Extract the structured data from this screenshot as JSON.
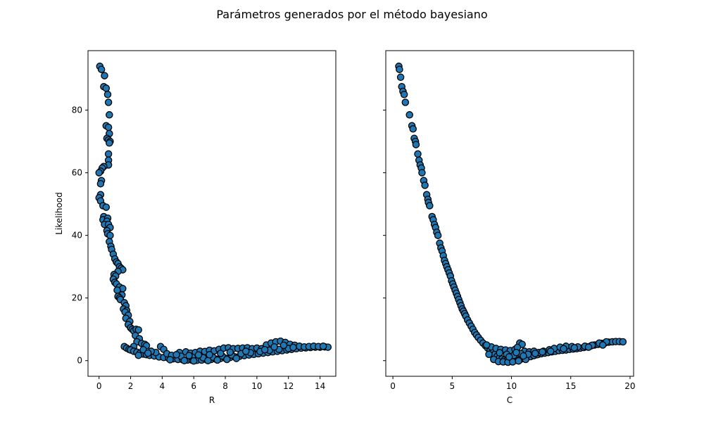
{
  "figure": {
    "title": "Parámetros generados por el método bayesiano"
  },
  "chart_data": [
    {
      "type": "scatter",
      "xlabel": "R",
      "ylabel": "Likelihood",
      "xlim": [
        -0.7,
        15.0
      ],
      "ylim": [
        -5,
        99
      ],
      "xticks": [
        0,
        2,
        4,
        6,
        8,
        10,
        12,
        14
      ],
      "yticks": [
        0,
        20,
        40,
        60,
        80
      ],
      "grid": false,
      "marker_color": "#1f77b4",
      "edge_color": "#000000",
      "points": [
        [
          0.05,
          94.0
        ],
        [
          0.15,
          93.0
        ],
        [
          0.35,
          91.0
        ],
        [
          0.3,
          87.5
        ],
        [
          0.45,
          87.0
        ],
        [
          0.55,
          85.0
        ],
        [
          0.6,
          82.5
        ],
        [
          0.65,
          78.5
        ],
        [
          0.45,
          75.0
        ],
        [
          0.6,
          74.5
        ],
        [
          0.65,
          72.5
        ],
        [
          0.5,
          71.0
        ],
        [
          0.6,
          70.5
        ],
        [
          0.7,
          70.0
        ],
        [
          0.65,
          69.5
        ],
        [
          0.6,
          66.0
        ],
        [
          0.6,
          64.0
        ],
        [
          0.6,
          62.5
        ],
        [
          0.3,
          62.0
        ],
        [
          0.2,
          61.5
        ],
        [
          0.1,
          60.5
        ],
        [
          0.0,
          60.0
        ],
        [
          0.15,
          57.5
        ],
        [
          0.1,
          56.5
        ],
        [
          0.1,
          53.0
        ],
        [
          0.0,
          52.0
        ],
        [
          0.1,
          51.0
        ],
        [
          0.25,
          49.5
        ],
        [
          0.45,
          49.0
        ],
        [
          0.3,
          46.0
        ],
        [
          0.25,
          45.0
        ],
        [
          0.55,
          45.5
        ],
        [
          0.5,
          44.5
        ],
        [
          0.35,
          43.5
        ],
        [
          0.6,
          43.5
        ],
        [
          0.7,
          42.5
        ],
        [
          0.5,
          41.5
        ],
        [
          0.55,
          40.5
        ],
        [
          0.7,
          40.0
        ],
        [
          0.65,
          38.0
        ],
        [
          0.75,
          36.5
        ],
        [
          0.8,
          35.5
        ],
        [
          0.9,
          34.0
        ],
        [
          1.0,
          32.5
        ],
        [
          1.1,
          31.5
        ],
        [
          1.2,
          31.0
        ],
        [
          1.3,
          30.0
        ],
        [
          1.4,
          29.5
        ],
        [
          1.5,
          29.0
        ],
        [
          1.2,
          28.5
        ],
        [
          0.95,
          27.5
        ],
        [
          1.05,
          27.0
        ],
        [
          0.9,
          26.0
        ],
        [
          1.0,
          25.0
        ],
        [
          1.1,
          24.5
        ],
        [
          1.3,
          23.5
        ],
        [
          1.5,
          23.0
        ],
        [
          1.15,
          22.5
        ],
        [
          1.45,
          21.0
        ],
        [
          1.2,
          20.5
        ],
        [
          1.3,
          20.0
        ],
        [
          1.35,
          19.5
        ],
        [
          1.6,
          18.5
        ],
        [
          1.7,
          17.5
        ],
        [
          1.55,
          16.5
        ],
        [
          1.75,
          16.0
        ],
        [
          1.65,
          15.5
        ],
        [
          1.85,
          14.5
        ],
        [
          1.7,
          13.5
        ],
        [
          1.95,
          12.5
        ],
        [
          1.85,
          11.5
        ],
        [
          2.0,
          10.5
        ],
        [
          2.1,
          10.0
        ],
        [
          2.2,
          9.5
        ],
        [
          2.35,
          10.0
        ],
        [
          2.5,
          9.8
        ],
        [
          2.3,
          8.0
        ],
        [
          2.55,
          7.0
        ],
        [
          2.4,
          6.0
        ],
        [
          2.7,
          5.5
        ],
        [
          2.9,
          5.2
        ],
        [
          3.0,
          4.8
        ],
        [
          2.2,
          4.5
        ],
        [
          1.6,
          4.5
        ],
        [
          1.75,
          4.0
        ],
        [
          1.9,
          3.6
        ],
        [
          2.0,
          3.4
        ],
        [
          2.2,
          3.0
        ],
        [
          2.4,
          2.7
        ],
        [
          2.6,
          2.4
        ],
        [
          2.8,
          2.1
        ],
        [
          3.0,
          1.9
        ],
        [
          3.2,
          1.7
        ],
        [
          3.5,
          1.5
        ],
        [
          3.8,
          1.2
        ],
        [
          4.1,
          1.0
        ],
        [
          4.4,
          0.8
        ],
        [
          4.7,
          0.6
        ],
        [
          5.0,
          0.4
        ],
        [
          5.3,
          0.3
        ],
        [
          5.6,
          0.2
        ],
        [
          5.9,
          0.1
        ],
        [
          6.2,
          0.1
        ],
        [
          6.5,
          0.2
        ],
        [
          6.8,
          0.3
        ],
        [
          7.1,
          0.4
        ],
        [
          7.4,
          0.5
        ],
        [
          7.7,
          0.7
        ],
        [
          8.0,
          0.8
        ],
        [
          8.3,
          1.0
        ],
        [
          8.6,
          1.2
        ],
        [
          8.9,
          1.4
        ],
        [
          9.2,
          1.6
        ],
        [
          9.5,
          1.8
        ],
        [
          9.8,
          2.0
        ],
        [
          10.1,
          2.2
        ],
        [
          10.4,
          2.4
        ],
        [
          10.7,
          2.6
        ],
        [
          11.0,
          2.8
        ],
        [
          11.3,
          3.0
        ],
        [
          11.6,
          3.2
        ],
        [
          11.9,
          3.4
        ],
        [
          12.2,
          3.6
        ],
        [
          12.5,
          3.8
        ],
        [
          12.8,
          4.0
        ],
        [
          13.1,
          4.1
        ],
        [
          13.4,
          4.2
        ],
        [
          13.7,
          4.3
        ],
        [
          14.0,
          4.3
        ],
        [
          14.3,
          4.4
        ],
        [
          14.5,
          4.3
        ],
        [
          3.9,
          4.5
        ],
        [
          4.1,
          3.6
        ],
        [
          4.3,
          2.2
        ],
        [
          3.6,
          2.6
        ],
        [
          5.1,
          2.6
        ],
        [
          5.5,
          2.8
        ],
        [
          5.8,
          2.4
        ],
        [
          6.1,
          2.6
        ],
        [
          6.4,
          3.0
        ],
        [
          6.7,
          2.9
        ],
        [
          7.0,
          3.3
        ],
        [
          7.3,
          3.1
        ],
        [
          7.6,
          3.6
        ],
        [
          7.9,
          4.0
        ],
        [
          8.2,
          4.1
        ],
        [
          8.5,
          3.8
        ],
        [
          8.8,
          3.9
        ],
        [
          9.1,
          4.0
        ],
        [
          9.4,
          4.1
        ],
        [
          9.7,
          3.8
        ],
        [
          10.0,
          4.0
        ],
        [
          10.3,
          3.8
        ],
        [
          10.6,
          5.0
        ],
        [
          10.9,
          5.6
        ],
        [
          11.2,
          6.0
        ],
        [
          11.5,
          6.2
        ],
        [
          11.8,
          5.8
        ],
        [
          12.1,
          5.2
        ],
        [
          12.4,
          4.9
        ],
        [
          12.7,
          4.6
        ],
        [
          13.0,
          4.4
        ],
        [
          13.3,
          4.5
        ],
        [
          13.6,
          4.6
        ],
        [
          13.9,
          4.5
        ],
        [
          14.2,
          4.6
        ],
        [
          4.6,
          1.7
        ],
        [
          5.2,
          1.4
        ],
        [
          5.9,
          1.1
        ],
        [
          6.6,
          0.9
        ],
        [
          7.2,
          1.1
        ],
        [
          7.8,
          1.5
        ],
        [
          8.4,
          1.8
        ],
        [
          9.0,
          2.2
        ],
        [
          9.6,
          2.5
        ],
        [
          10.2,
          2.9
        ],
        [
          10.8,
          3.3
        ],
        [
          11.4,
          3.6
        ],
        [
          12.0,
          3.9
        ],
        [
          4.5,
          0.3
        ],
        [
          5.4,
          0.0
        ],
        [
          6.0,
          -0.1
        ],
        [
          6.9,
          0.0
        ],
        [
          7.5,
          0.2
        ],
        [
          8.1,
          0.4
        ],
        [
          8.7,
          0.7
        ],
        [
          2.8,
          3.5
        ],
        [
          3.3,
          3.0
        ],
        [
          2.5,
          1.7
        ],
        [
          3.1,
          2.4
        ],
        [
          4.9,
          1.9
        ],
        [
          5.7,
          1.6
        ],
        [
          6.3,
          1.8
        ],
        [
          7.0,
          1.9
        ],
        [
          7.7,
          2.3
        ],
        [
          8.3,
          2.7
        ],
        [
          9.3,
          3.0
        ],
        [
          10.5,
          3.5
        ],
        [
          11.1,
          4.4
        ],
        [
          11.7,
          4.9
        ],
        [
          12.3,
          4.2
        ]
      ]
    },
    {
      "type": "scatter",
      "xlabel": "C",
      "ylabel": "",
      "xlim": [
        -0.6,
        20.3
      ],
      "ylim": [
        -5,
        99
      ],
      "xticks": [
        0,
        5,
        10,
        15,
        20
      ],
      "yticks": [
        0,
        20,
        40,
        60,
        80
      ],
      "grid": false,
      "marker_color": "#1f77b4",
      "edge_color": "#000000",
      "points": [
        [
          0.5,
          94.0
        ],
        [
          0.55,
          93.0
        ],
        [
          0.65,
          90.5
        ],
        [
          0.75,
          87.5
        ],
        [
          0.85,
          86.0
        ],
        [
          0.95,
          85.0
        ],
        [
          1.05,
          82.5
        ],
        [
          1.4,
          78.5
        ],
        [
          1.6,
          75.0
        ],
        [
          1.7,
          74.0
        ],
        [
          1.8,
          71.0
        ],
        [
          1.9,
          70.0
        ],
        [
          1.95,
          69.0
        ],
        [
          2.1,
          66.0
        ],
        [
          2.2,
          64.0
        ],
        [
          2.3,
          62.5
        ],
        [
          2.4,
          61.5
        ],
        [
          2.45,
          60.0
        ],
        [
          2.6,
          57.5
        ],
        [
          2.7,
          56.0
        ],
        [
          2.85,
          53.0
        ],
        [
          2.95,
          51.5
        ],
        [
          3.0,
          50.5
        ],
        [
          3.1,
          49.5
        ],
        [
          3.3,
          46.0
        ],
        [
          3.4,
          45.0
        ],
        [
          3.5,
          43.5
        ],
        [
          3.6,
          42.5
        ],
        [
          3.7,
          41.0
        ],
        [
          3.8,
          40.0
        ],
        [
          3.95,
          37.5
        ],
        [
          4.05,
          36.0
        ],
        [
          4.15,
          35.0
        ],
        [
          4.25,
          33.5
        ],
        [
          4.35,
          32.0
        ],
        [
          4.45,
          31.0
        ],
        [
          4.55,
          30.0
        ],
        [
          4.65,
          29.0
        ],
        [
          4.75,
          28.0
        ],
        [
          4.85,
          27.0
        ],
        [
          4.95,
          25.5
        ],
        [
          5.05,
          24.5
        ],
        [
          5.15,
          23.5
        ],
        [
          5.25,
          22.5
        ],
        [
          5.35,
          21.5
        ],
        [
          5.45,
          20.5
        ],
        [
          5.55,
          19.5
        ],
        [
          5.65,
          18.5
        ],
        [
          5.75,
          17.5
        ],
        [
          5.85,
          16.5
        ],
        [
          5.95,
          15.8
        ],
        [
          6.05,
          15.0
        ],
        [
          6.15,
          14.2
        ],
        [
          6.3,
          13.0
        ],
        [
          6.45,
          12.0
        ],
        [
          6.6,
          11.0
        ],
        [
          6.75,
          10.0
        ],
        [
          6.9,
          9.0
        ],
        [
          7.05,
          8.2
        ],
        [
          7.2,
          7.4
        ],
        [
          7.4,
          6.5
        ],
        [
          7.6,
          5.6
        ],
        [
          7.8,
          4.8
        ],
        [
          8.0,
          4.0
        ],
        [
          8.2,
          3.3
        ],
        [
          8.4,
          2.6
        ],
        [
          8.6,
          2.0
        ],
        [
          8.8,
          1.4
        ],
        [
          9.0,
          0.9
        ],
        [
          9.2,
          0.5
        ],
        [
          9.4,
          0.2
        ],
        [
          9.6,
          0.0
        ],
        [
          9.8,
          -0.1
        ],
        [
          10.0,
          -0.1
        ],
        [
          10.2,
          0.0
        ],
        [
          10.4,
          0.1
        ],
        [
          10.6,
          0.3
        ],
        [
          10.8,
          0.5
        ],
        [
          11.0,
          0.7
        ],
        [
          11.3,
          1.0
        ],
        [
          11.6,
          1.3
        ],
        [
          11.9,
          1.6
        ],
        [
          12.2,
          1.9
        ],
        [
          12.5,
          2.2
        ],
        [
          12.8,
          2.4
        ],
        [
          13.1,
          2.6
        ],
        [
          13.4,
          2.8
        ],
        [
          13.7,
          3.0
        ],
        [
          14.0,
          3.2
        ],
        [
          14.3,
          3.3
        ],
        [
          14.6,
          3.4
        ],
        [
          14.9,
          3.6
        ],
        [
          15.2,
          3.7
        ],
        [
          15.5,
          3.8
        ],
        [
          15.8,
          4.0
        ],
        [
          16.1,
          4.2
        ],
        [
          16.4,
          4.4
        ],
        [
          16.7,
          4.7
        ],
        [
          17.0,
          5.0
        ],
        [
          17.3,
          5.2
        ],
        [
          17.6,
          5.5
        ],
        [
          17.9,
          5.7
        ],
        [
          18.2,
          5.9
        ],
        [
          18.5,
          6.0
        ],
        [
          18.8,
          6.1
        ],
        [
          19.1,
          6.1
        ],
        [
          19.4,
          6.0
        ],
        [
          8.3,
          4.4
        ],
        [
          8.7,
          3.9
        ],
        [
          9.1,
          3.6
        ],
        [
          9.5,
          3.4
        ],
        [
          9.9,
          3.2
        ],
        [
          10.3,
          3.6
        ],
        [
          10.7,
          5.6
        ],
        [
          10.9,
          5.2
        ],
        [
          10.5,
          4.2
        ],
        [
          11.1,
          3.0
        ],
        [
          11.5,
          2.8
        ],
        [
          11.9,
          3.0
        ],
        [
          12.3,
          2.6
        ],
        [
          12.7,
          3.0
        ],
        [
          13.2,
          3.5
        ],
        [
          13.6,
          3.9
        ],
        [
          14.1,
          4.3
        ],
        [
          14.6,
          4.6
        ],
        [
          15.1,
          4.5
        ],
        [
          15.6,
          4.4
        ],
        [
          16.2,
          4.6
        ],
        [
          16.8,
          4.9
        ],
        [
          17.4,
          5.6
        ],
        [
          18.0,
          6.0
        ],
        [
          8.5,
          0.4
        ],
        [
          8.9,
          -0.3
        ],
        [
          9.3,
          -0.4
        ],
        [
          9.7,
          -0.5
        ],
        [
          10.1,
          -0.4
        ],
        [
          10.6,
          -0.1
        ],
        [
          11.2,
          0.4
        ],
        [
          9.0,
          2.5
        ],
        [
          9.6,
          2.0
        ],
        [
          10.2,
          1.7
        ],
        [
          10.8,
          2.2
        ],
        [
          11.4,
          2.0
        ],
        [
          12.0,
          2.3
        ],
        [
          12.6,
          2.8
        ],
        [
          13.3,
          3.0
        ],
        [
          14.4,
          3.8
        ],
        [
          15.3,
          4.1
        ],
        [
          16.5,
          4.3
        ],
        [
          17.7,
          5.0
        ],
        [
          7.9,
          5.0
        ],
        [
          8.1,
          2.0
        ],
        [
          9.8,
          1.2
        ],
        [
          10.4,
          2.6
        ],
        [
          11.0,
          1.5
        ]
      ]
    }
  ]
}
